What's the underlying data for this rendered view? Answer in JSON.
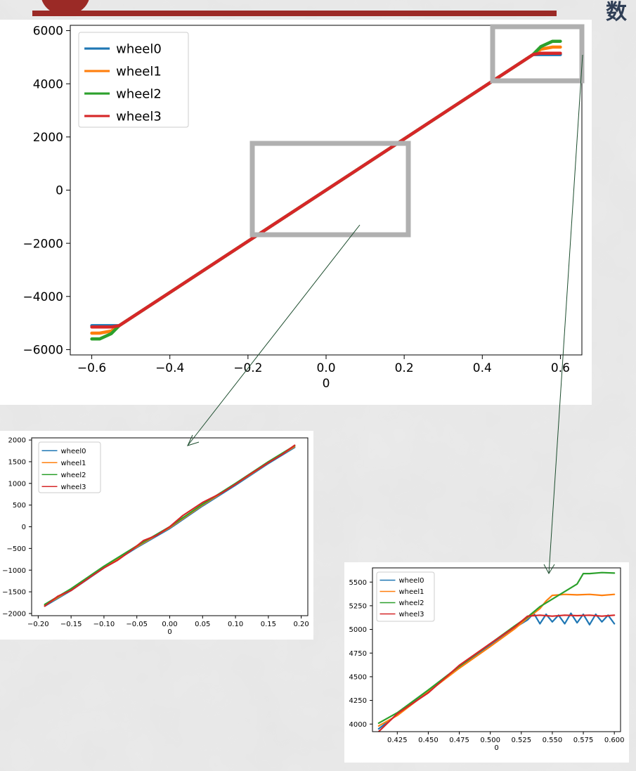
{
  "page": {
    "header_text": "数"
  },
  "colors": {
    "wheel0": "#1f77b4",
    "wheel1": "#ff7f0e",
    "wheel2": "#2ca02c",
    "wheel3": "#d62728",
    "header_accent": "#9b2a26",
    "highlight_box": "#b0b0b0",
    "connector": "#1d4d2e"
  },
  "chart_data": [
    {
      "id": "main",
      "type": "line",
      "xlabel": "0",
      "ylabel": "",
      "xlim": [
        -0.655,
        0.655
      ],
      "ylim": [
        -6200,
        6200
      ],
      "xticks": [
        -0.6,
        -0.4,
        -0.2,
        0.0,
        0.2,
        0.4,
        0.6
      ],
      "xtick_labels": [
        "−0.6",
        "−0.4",
        "−0.2",
        "0.0",
        "0.2",
        "0.4",
        "0.6"
      ],
      "yticks": [
        -6000,
        -4000,
        -2000,
        0,
        2000,
        4000,
        6000
      ],
      "ytick_labels": [
        "−6000",
        "−4000",
        "−2000",
        "0",
        "2000",
        "4000",
        "6000"
      ],
      "legend": {
        "position": "top-left",
        "entries": [
          "wheel0",
          "wheel1",
          "wheel2",
          "wheel3"
        ]
      },
      "grid": false,
      "series": [
        {
          "name": "wheel0",
          "x": [
            -0.6,
            -0.58,
            -0.55,
            -0.53,
            0,
            0.53,
            0.55,
            0.58,
            0.6
          ],
          "y": [
            -5100,
            -5100,
            -5100,
            -5100,
            0,
            5100,
            5100,
            5100,
            5100
          ]
        },
        {
          "name": "wheel1",
          "x": [
            -0.6,
            -0.58,
            -0.55,
            -0.53,
            0,
            0.53,
            0.55,
            0.58,
            0.6
          ],
          "y": [
            -5380,
            -5380,
            -5300,
            -5100,
            0,
            5100,
            5300,
            5380,
            5380
          ]
        },
        {
          "name": "wheel2",
          "x": [
            -0.6,
            -0.58,
            -0.55,
            -0.53,
            0,
            0.53,
            0.55,
            0.58,
            0.6
          ],
          "y": [
            -5600,
            -5600,
            -5400,
            -5100,
            0,
            5100,
            5400,
            5600,
            5600
          ]
        },
        {
          "name": "wheel3",
          "x": [
            -0.6,
            -0.58,
            -0.55,
            -0.53,
            0,
            0.53,
            0.55,
            0.58,
            0.6
          ],
          "y": [
            -5150,
            -5150,
            -5150,
            -5100,
            0,
            5100,
            5150,
            5150,
            5150
          ]
        }
      ]
    },
    {
      "id": "zoom-center",
      "type": "line",
      "xlabel": "0",
      "ylabel": "",
      "xlim": [
        -0.21,
        0.21
      ],
      "ylim": [
        -2050,
        2050
      ],
      "xticks": [
        -0.2,
        -0.15,
        -0.1,
        -0.05,
        0.0,
        0.05,
        0.1,
        0.15,
        0.2
      ],
      "xtick_labels": [
        "−0.20",
        "−0.15",
        "−0.10",
        "−0.05",
        "0.00",
        "0.05",
        "0.10",
        "0.15",
        "0.20"
      ],
      "yticks": [
        -2000,
        -1500,
        -1000,
        -500,
        0,
        500,
        1000,
        1500,
        2000
      ],
      "ytick_labels": [
        "−2000",
        "−1500",
        "−1000",
        "−500",
        "0",
        "500",
        "1000",
        "1500",
        "2000"
      ],
      "legend": {
        "position": "top-left",
        "entries": [
          "wheel0",
          "wheel1",
          "wheel2",
          "wheel3"
        ]
      },
      "grid": false,
      "series": [
        {
          "name": "wheel0",
          "x": [
            -0.19,
            -0.15,
            -0.1,
            -0.05,
            0,
            0.05,
            0.1,
            0.15,
            0.19
          ],
          "y": [
            -1830,
            -1470,
            -950,
            -480,
            -40,
            480,
            960,
            1460,
            1830
          ]
        },
        {
          "name": "wheel1",
          "x": [
            -0.19,
            -0.15,
            -0.1,
            -0.05,
            0,
            0.05,
            0.1,
            0.15,
            0.19
          ],
          "y": [
            -1810,
            -1450,
            -930,
            -460,
            -20,
            500,
            980,
            1480,
            1850
          ]
        },
        {
          "name": "wheel2",
          "x": [
            -0.19,
            -0.15,
            -0.1,
            -0.05,
            0,
            0.05,
            0.1,
            0.15,
            0.19
          ],
          "y": [
            -1790,
            -1430,
            -910,
            -440,
            0,
            520,
            1000,
            1500,
            1870
          ]
        },
        {
          "name": "wheel3",
          "x": [
            -0.19,
            -0.17,
            -0.15,
            -0.12,
            -0.1,
            -0.08,
            -0.06,
            -0.04,
            -0.02,
            0,
            0.02,
            0.05,
            0.08,
            0.1,
            0.12,
            0.15,
            0.17,
            0.19
          ],
          "y": [
            -1830,
            -1600,
            -1470,
            -1150,
            -950,
            -780,
            -560,
            -320,
            -200,
            0,
            260,
            560,
            790,
            980,
            1190,
            1480,
            1660,
            1880
          ]
        }
      ]
    },
    {
      "id": "zoom-tail",
      "type": "line",
      "xlabel": "0",
      "ylabel": "",
      "xlim": [
        0.405,
        0.605
      ],
      "ylim": [
        3920,
        5650
      ],
      "xticks": [
        0.425,
        0.45,
        0.475,
        0.5,
        0.525,
        0.55,
        0.575,
        0.6
      ],
      "xtick_labels": [
        "0.425",
        "0.450",
        "0.475",
        "0.500",
        "0.525",
        "0.550",
        "0.575",
        "0.600"
      ],
      "yticks": [
        4000,
        4250,
        4500,
        4750,
        5000,
        5250,
        5500
      ],
      "ytick_labels": [
        "4000",
        "4250",
        "4500",
        "4750",
        "5000",
        "5250",
        "5500"
      ],
      "legend": {
        "position": "top-left",
        "entries": [
          "wheel0",
          "wheel1",
          "wheel2",
          "wheel3"
        ]
      },
      "grid": false,
      "series": [
        {
          "name": "wheel0",
          "x": [
            0.41,
            0.425,
            0.45,
            0.475,
            0.5,
            0.52,
            0.53,
            0.535,
            0.54,
            0.545,
            0.55,
            0.555,
            0.56,
            0.565,
            0.57,
            0.575,
            0.58,
            0.585,
            0.59,
            0.595,
            0.6
          ],
          "y": [
            3950,
            4100,
            4350,
            4600,
            4830,
            5020,
            5100,
            5170,
            5060,
            5160,
            5080,
            5150,
            5060,
            5170,
            5070,
            5160,
            5050,
            5160,
            5080,
            5150,
            5060
          ]
        },
        {
          "name": "wheel1",
          "x": [
            0.41,
            0.425,
            0.45,
            0.475,
            0.5,
            0.52,
            0.53,
            0.54,
            0.545,
            0.55,
            0.56,
            0.57,
            0.58,
            0.59,
            0.6
          ],
          "y": [
            3980,
            4090,
            4340,
            4590,
            4820,
            5010,
            5120,
            5220,
            5300,
            5360,
            5370,
            5365,
            5370,
            5360,
            5370
          ]
        },
        {
          "name": "wheel2",
          "x": [
            0.41,
            0.425,
            0.45,
            0.475,
            0.5,
            0.52,
            0.53,
            0.54,
            0.55,
            0.56,
            0.57,
            0.575,
            0.58,
            0.59,
            0.6
          ],
          "y": [
            4010,
            4120,
            4360,
            4610,
            4850,
            5040,
            5130,
            5240,
            5320,
            5400,
            5480,
            5590,
            5590,
            5600,
            5595
          ]
        },
        {
          "name": "wheel3",
          "x": [
            0.41,
            0.425,
            0.45,
            0.475,
            0.5,
            0.52,
            0.53,
            0.54,
            0.55,
            0.56,
            0.57,
            0.58,
            0.59,
            0.6
          ],
          "y": [
            3920,
            4110,
            4330,
            4620,
            4850,
            5030,
            5140,
            5150,
            5140,
            5150,
            5145,
            5150,
            5140,
            5150
          ]
        }
      ]
    }
  ]
}
